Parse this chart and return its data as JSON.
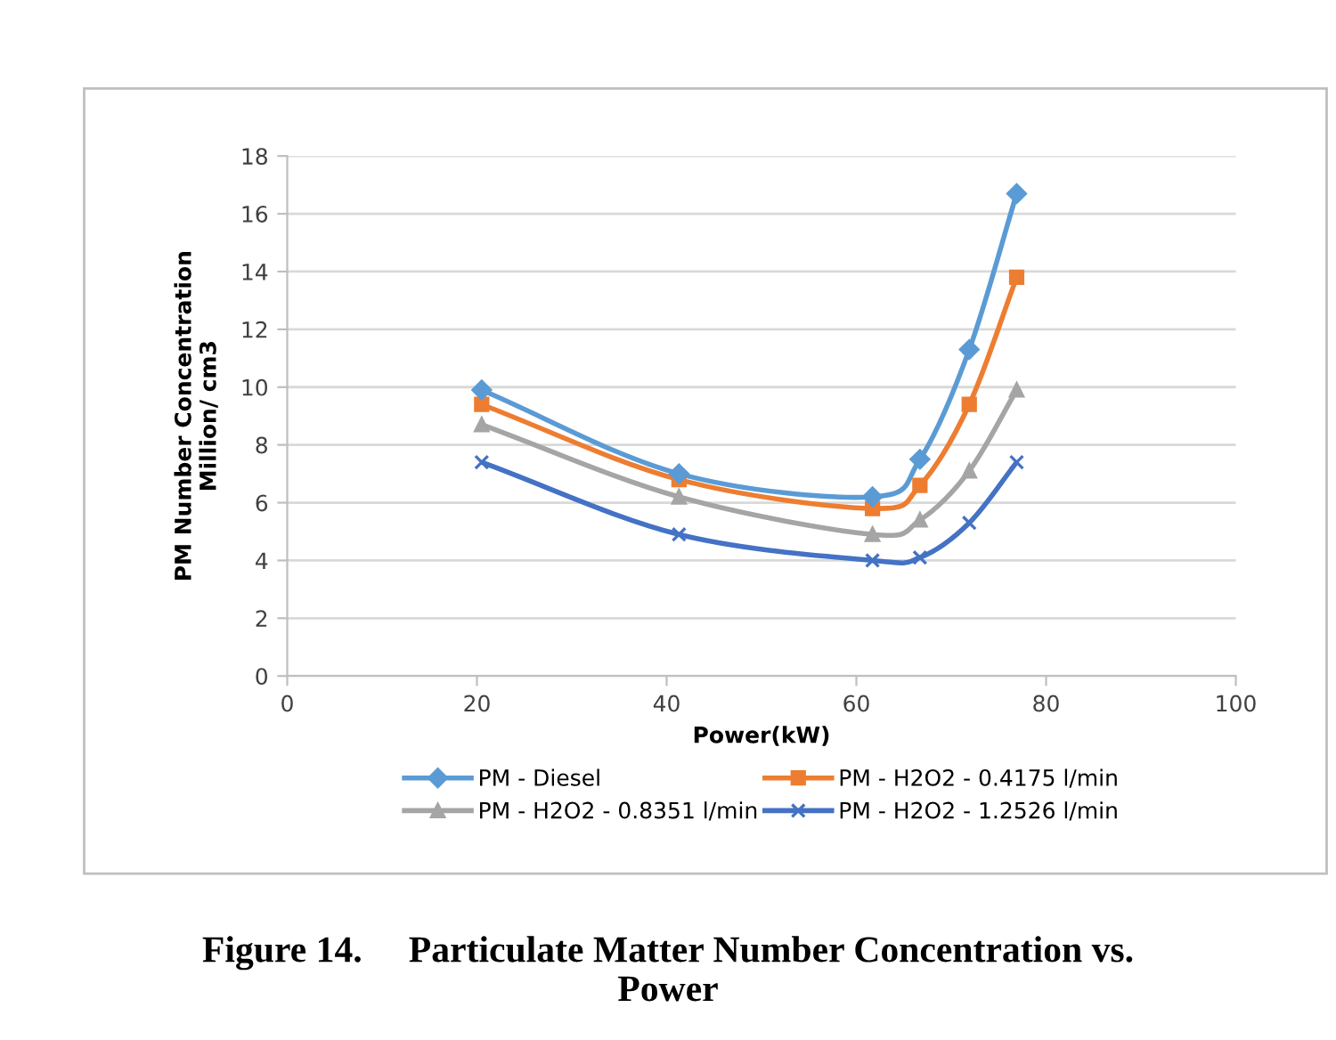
{
  "chart_data": {
    "type": "line",
    "xlabel": "Power(kW)",
    "ylabel": "PM Number Concentration\nMillion/ cm3",
    "x": [
      20.5,
      41.3,
      61.7,
      66.7,
      71.9,
      76.9
    ],
    "series": [
      {
        "name": "PM - Diesel",
        "color": "#5b9bd5",
        "marker": "diamond",
        "values": [
          9.9,
          7.0,
          6.2,
          7.5,
          11.3,
          16.7
        ]
      },
      {
        "name": "PM - H2O2 - 0.4175 l/min",
        "color": "#ed7d31",
        "marker": "square",
        "values": [
          9.4,
          6.8,
          5.8,
          6.6,
          9.4,
          13.8
        ]
      },
      {
        "name": "PM - H2O2 - 0.8351 l/min",
        "color": "#a5a5a5",
        "marker": "triangle",
        "values": [
          8.7,
          6.2,
          4.9,
          5.4,
          7.1,
          9.9
        ]
      },
      {
        "name": "PM - H2O2 - 1.2526 l/min",
        "color": "#4472c4",
        "marker": "cross",
        "values": [
          7.4,
          4.9,
          4.0,
          4.1,
          5.3,
          7.4
        ]
      }
    ],
    "xlim": [
      0,
      100
    ],
    "xticks": [
      0,
      20,
      40,
      60,
      80,
      100
    ],
    "ylim": [
      0,
      18
    ],
    "yticks": [
      0,
      2,
      4,
      6,
      8,
      10,
      12,
      14,
      16,
      18
    ],
    "grid": "y",
    "legend": "bottom",
    "annotations": [
      "Figure 14.     Particulate Matter Number Concentration vs.\nPower"
    ]
  }
}
